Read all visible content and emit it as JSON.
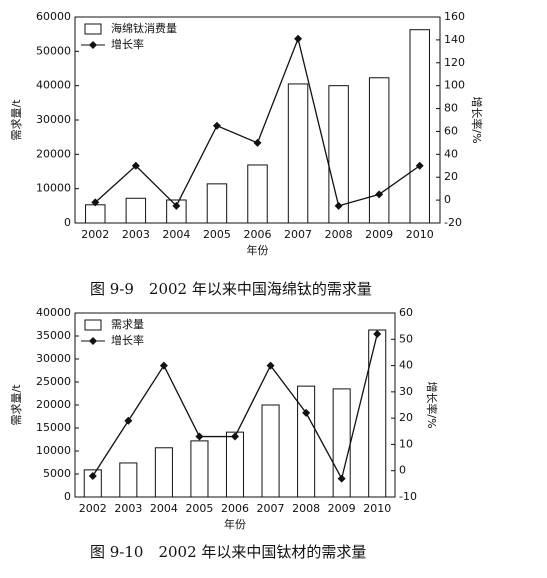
{
  "chart_data": [
    {
      "type": "combo",
      "title": "图 9-9　2002 年以来中国海绵钛的需求量",
      "x_label": "年份",
      "y_label": "需求量/t",
      "y2_label": "增长率/%",
      "legend": "upper left",
      "categories": [
        "2002",
        "2003",
        "2004",
        "2005",
        "2006",
        "2007",
        "2008",
        "2009",
        "2010"
      ],
      "series": [
        {
          "name": "海绵钛消费量",
          "type": "bar",
          "color": "#ffffff",
          "values": [
            5300,
            7200,
            6700,
            11400,
            16900,
            40500,
            40000,
            42300,
            56300
          ]
        },
        {
          "name": "增长率",
          "type": "line",
          "axis": "y2",
          "color": "#111111",
          "values": [
            -2,
            30,
            -5,
            65,
            50,
            141,
            -5,
            5,
            30
          ]
        }
      ],
      "ylim": [
        0,
        60000
      ],
      "yticks": [
        0,
        10000,
        20000,
        30000,
        40000,
        50000,
        60000
      ],
      "y2lim": [
        -20,
        160
      ],
      "y2ticks": [
        -20,
        0,
        20,
        40,
        60,
        80,
        100,
        120,
        140,
        160
      ]
    },
    {
      "type": "combo",
      "title": "图 9-10　2002 年以来中国钛材的需求量",
      "x_label": "年份",
      "y_label": "需求量/t",
      "y2_label": "增长率/%",
      "legend": "upper left",
      "categories": [
        "2002",
        "2003",
        "2004",
        "2005",
        "2006",
        "2007",
        "2008",
        "2009",
        "2010"
      ],
      "series": [
        {
          "name": "需求量",
          "type": "bar",
          "color": "#ffffff",
          "values": [
            5900,
            7400,
            10700,
            12200,
            14100,
            20000,
            24100,
            23500,
            36300
          ]
        },
        {
          "name": "增长率",
          "type": "line",
          "axis": "y2",
          "color": "#111111",
          "values": [
            -2,
            19,
            40,
            13,
            13,
            40,
            22,
            -3,
            52
          ]
        }
      ],
      "ylim": [
        0,
        40000
      ],
      "yticks": [
        0,
        5000,
        10000,
        15000,
        20000,
        25000,
        30000,
        35000,
        40000
      ],
      "y2lim": [
        -10,
        60
      ],
      "y2ticks": [
        -10,
        0,
        10,
        20,
        30,
        40,
        50,
        60
      ]
    }
  ]
}
